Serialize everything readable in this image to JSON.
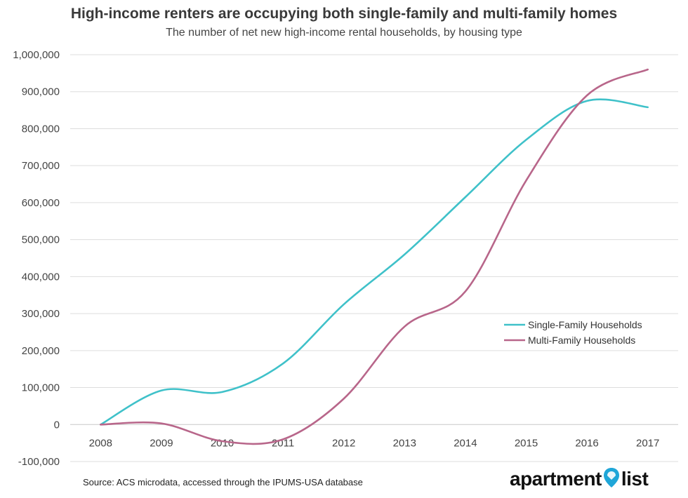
{
  "chart_data": {
    "type": "line",
    "title": "High-income renters are occupying both single-family and multi-family homes",
    "subtitle": "The number of net new high-income rental households, by housing type",
    "x": [
      "2008",
      "2009",
      "2010",
      "2011",
      "2012",
      "2013",
      "2014",
      "2015",
      "2016",
      "2017"
    ],
    "ylim": [
      -100000,
      1000000
    ],
    "yticks": [
      -100000,
      0,
      100000,
      200000,
      300000,
      400000,
      500000,
      600000,
      700000,
      800000,
      900000,
      1000000
    ],
    "ytick_labels": [
      "-100,000",
      "0",
      "100,000",
      "200,000",
      "300,000",
      "400,000",
      "500,000",
      "600,000",
      "700,000",
      "800,000",
      "900,000",
      "1,000,000"
    ],
    "grid": "horizontal",
    "legend_position": "right",
    "series": [
      {
        "name": "Single-Family Households",
        "color": "#3fc1c9",
        "values": [
          0,
          92000,
          88000,
          165000,
          325000,
          460000,
          615000,
          770000,
          875000,
          858000
        ]
      },
      {
        "name": "Multi-Family Households",
        "color": "#b8668a",
        "values": [
          0,
          3000,
          -45000,
          -40000,
          70000,
          265000,
          360000,
          660000,
          890000,
          960000
        ]
      }
    ]
  },
  "source_text": "Source: ACS microdata, accessed through the IPUMS-USA database",
  "logo": {
    "part1": "apartment",
    "part2": "list"
  }
}
